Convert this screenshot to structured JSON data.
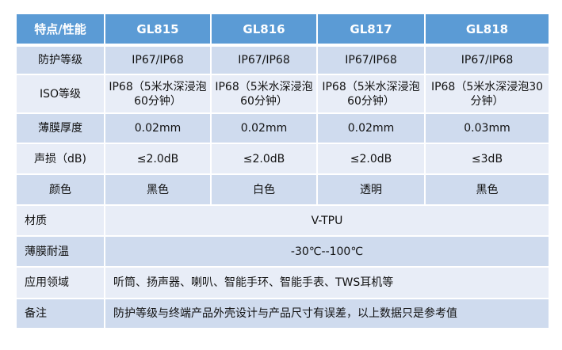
{
  "header": [
    "特点/性能",
    "GL815",
    "GL816",
    "GL817",
    "GL818"
  ],
  "rows": [
    {
      "label": "防护等级",
      "values": [
        "IP67/IP68",
        "IP67/IP68",
        "IP67/IP68",
        "IP67/IP68"
      ]
    },
    {
      "label": "ISO等级",
      "values": [
        "IP68（5米水深浸泡60分钟）",
        "IP68（5米水深浸泡60分钟）",
        "IP68（5米水深浸泡60分钟）",
        "IP68（5米水深浸泡30分钟）"
      ]
    },
    {
      "label": "薄膜厚度",
      "values": [
        "0.02mm",
        "0.02mm",
        "0.02mm",
        "0.03mm"
      ]
    },
    {
      "label": "声损（dB)",
      "values": [
        "≤2.0dB",
        "≤2.0dB",
        "≤2.0dB",
        "≤3dB"
      ]
    },
    {
      "label": "颜色",
      "values": [
        "黑色",
        "白色",
        "透明",
        "黑色"
      ]
    }
  ],
  "merged_rows": [
    {
      "label": "材质",
      "value": "V-TPU"
    },
    {
      "label": "薄膜耐温",
      "value": "-30℃--100℃"
    },
    {
      "label": "应用领域",
      "value": "听筒、扬声器、喇叭、智能手环、智能手表、TWS耳机等"
    },
    {
      "label": "备注",
      "value": "防护等级与终端产品外壳设计与产品尺寸有误差，以上数据只是参考值"
    }
  ],
  "colors": {
    "header": "#5b9bd5",
    "row_dark": "#cfdbee",
    "row_light": "#e8edf7"
  }
}
